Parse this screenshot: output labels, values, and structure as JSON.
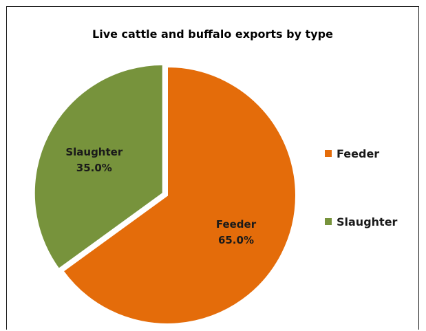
{
  "chart_data": {
    "type": "pie",
    "title": "Live cattle and buffalo exports by type",
    "slices": [
      {
        "name": "Feeder",
        "value": 65.0,
        "label": "65.0%",
        "color": "#E46C0A"
      },
      {
        "name": "Slaughter",
        "value": 35.0,
        "label": "35.0%",
        "color": "#77933C"
      }
    ],
    "exploded_slice": "Slaughter",
    "legend_position": "right"
  }
}
